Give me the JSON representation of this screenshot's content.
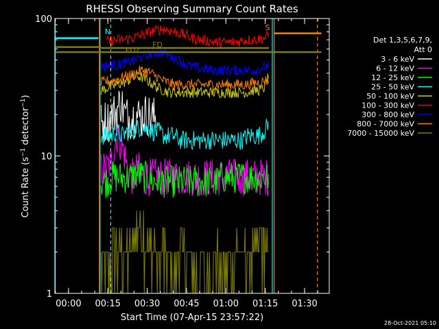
{
  "chart_data": {
    "type": "line",
    "title": "RHESSI Observing Summary Count Rates",
    "xlabel": "Start Time (07-Apr-15 23:57:22)",
    "ylabel": "Count Rate (s⁻¹ detector⁻¹)",
    "ylabel_parts": [
      "Count Rate (s",
      "−1",
      " detector",
      "−1",
      ")"
    ],
    "y_scale": "log",
    "ylim": [
      1,
      100
    ],
    "y_ticks": [
      "1",
      "10",
      "100"
    ],
    "xlim_minutes": [
      -2.6,
      102.0
    ],
    "x_ticks": [
      {
        "min": 2.6,
        "label": "00:00"
      },
      {
        "min": 17.6,
        "label": "00:15"
      },
      {
        "min": 32.6,
        "label": "00:30"
      },
      {
        "min": 47.6,
        "label": "00:45"
      },
      {
        "min": 62.6,
        "label": "01:00"
      },
      {
        "min": 77.6,
        "label": "01:15"
      },
      {
        "min": 92.6,
        "label": "01:30"
      }
    ],
    "legend_header": [
      "Det 1,3,5,6,7,9,",
      "Att 0"
    ],
    "legend_position": "right",
    "series": [
      {
        "name": "3 - 6 keV",
        "color": "#ffffff",
        "start": 15.0,
        "end": 36.0,
        "values": [
          17,
          18,
          18,
          20,
          21,
          25,
          20,
          19,
          19,
          20,
          19,
          20,
          20,
          19,
          19
        ]
      },
      {
        "name": "6 - 12 keV",
        "color": "#ff00ff",
        "start": 15.0,
        "end": 79.0,
        "values": [
          8,
          8,
          9,
          14,
          12,
          8,
          7,
          8,
          7,
          7,
          7,
          7,
          7,
          7,
          7,
          7,
          7,
          7,
          7,
          7,
          7,
          7,
          7,
          7,
          7,
          7,
          7,
          7,
          7,
          7,
          7,
          7,
          7
        ]
      },
      {
        "name": "12 - 25 keV",
        "color": "#00ff00",
        "start": 15.0,
        "end": 79.0,
        "values": [
          6.5,
          6.5,
          7,
          7,
          7,
          7,
          7,
          7.5,
          7,
          7,
          6.5,
          6.5,
          6.5,
          6.5,
          6.5,
          6.5,
          6.5,
          6.5,
          6.5,
          6.5,
          6.5,
          6.5,
          6.5,
          7,
          7,
          7,
          7,
          7,
          7,
          7,
          7,
          7,
          7
        ]
      },
      {
        "name": "25 - 50 keV",
        "color": "#00ffff",
        "start": 15.0,
        "end": 79.0,
        "values": [
          14,
          14,
          14,
          15,
          14,
          15,
          15,
          16,
          16,
          16,
          15,
          15,
          14,
          14,
          14,
          13,
          13,
          13,
          13,
          13,
          13,
          13,
          13,
          13,
          13,
          13,
          13,
          13,
          14,
          14,
          14,
          15,
          17
        ]
      },
      {
        "name": "50 - 100 keV",
        "color": "#d0d000",
        "start": 15.0,
        "end": 79.0,
        "values": [
          30,
          31,
          32,
          33,
          34,
          35,
          37,
          38,
          37,
          35,
          33,
          31,
          30,
          29,
          29,
          29,
          29,
          29,
          29,
          29,
          29,
          29,
          29,
          29,
          29,
          29,
          29,
          29,
          29,
          30,
          30,
          31,
          38
        ]
      },
      {
        "name": "100 - 300 keV",
        "color": "#ff0000",
        "start": 17.0,
        "end": 79.0,
        "values": [
          68,
          69,
          70,
          70,
          71,
          72,
          74,
          76,
          79,
          81,
          83,
          84,
          82,
          80,
          78,
          76,
          73,
          71,
          70,
          69,
          68,
          67,
          67,
          67,
          67,
          68,
          69,
          70,
          70,
          71,
          72,
          75
        ]
      },
      {
        "name": "300 - 800 keV",
        "color": "#0000ff",
        "start": 15.0,
        "end": 79.0,
        "values": [
          45,
          45,
          46,
          46,
          47,
          48,
          49,
          51,
          53,
          55,
          56,
          57,
          56,
          54,
          52,
          49,
          47,
          45,
          44,
          43,
          43,
          42,
          42,
          42,
          42,
          42,
          42,
          42,
          42,
          42,
          43,
          44,
          46
        ]
      },
      {
        "name": "800 - 7000 keV",
        "color": "#ff8000",
        "start": 15.0,
        "end": 79.0,
        "values": [
          34,
          35,
          35,
          36,
          37,
          38,
          39,
          41,
          42,
          41,
          39,
          37,
          35,
          34,
          33,
          33,
          33,
          33,
          33,
          33,
          33,
          33,
          33,
          33,
          33,
          33,
          33,
          33,
          33,
          34,
          34,
          35,
          36
        ]
      },
      {
        "name": "7000 - 15000 keV",
        "color": "#808000",
        "start": 15.0,
        "end": 79.0,
        "values": [
          1.5,
          1.5,
          2,
          2,
          2,
          2,
          2.5,
          3,
          3,
          2,
          2,
          2,
          2,
          1.5,
          1.5,
          2,
          2,
          1.5,
          1.5,
          1.5,
          1.5,
          1.5,
          2,
          1.5,
          1.5,
          1.5,
          2,
          2,
          2,
          2,
          2.5,
          2.5,
          2
        ]
      }
    ],
    "flag_lines": [
      {
        "label": "",
        "color": "#00ffff",
        "y": 72,
        "start": -2.6,
        "end": 14.0
      },
      {
        "label": "",
        "color": "#ff8000",
        "y": 78,
        "start": 81.0,
        "end": 99.0
      },
      {
        "label": "",
        "color": "#808000",
        "y": 57,
        "start": -2.6,
        "end": 99.0
      },
      {
        "label": "",
        "color": "#808000",
        "y": 62,
        "start": -2.6,
        "end": 15.0
      },
      {
        "label": "",
        "color": "#808000",
        "y": 61,
        "start": 15.0,
        "end": 79.0
      }
    ],
    "markers": [
      {
        "label": "N",
        "color": "#00ffff",
        "min": 17.5
      },
      {
        "label": "S",
        "color": "#ff8000",
        "min": 78.5
      },
      {
        "label": "FD",
        "color": "#808000",
        "min": 36.5
      },
      {
        "label": "FD?",
        "color": "#808000",
        "min": 27.0
      }
    ],
    "vertical_lines": [
      {
        "color": "#00ffff",
        "min": -2.5,
        "style": "solid"
      },
      {
        "color": "#ff8000",
        "min": 14.4,
        "style": "solid"
      },
      {
        "color": "#00ffff",
        "min": 14.6,
        "style": "solid"
      },
      {
        "color": "#00ffff",
        "min": 18.7,
        "style": "dashed"
      },
      {
        "color": "#00ffff",
        "min": 80.3,
        "style": "solid"
      },
      {
        "color": "#ff8000",
        "min": 81.0,
        "style": "solid"
      },
      {
        "color": "#ff8000",
        "min": 97.5,
        "style": "dashed"
      }
    ],
    "timestamp": "28-Oct-2021 05:10"
  }
}
